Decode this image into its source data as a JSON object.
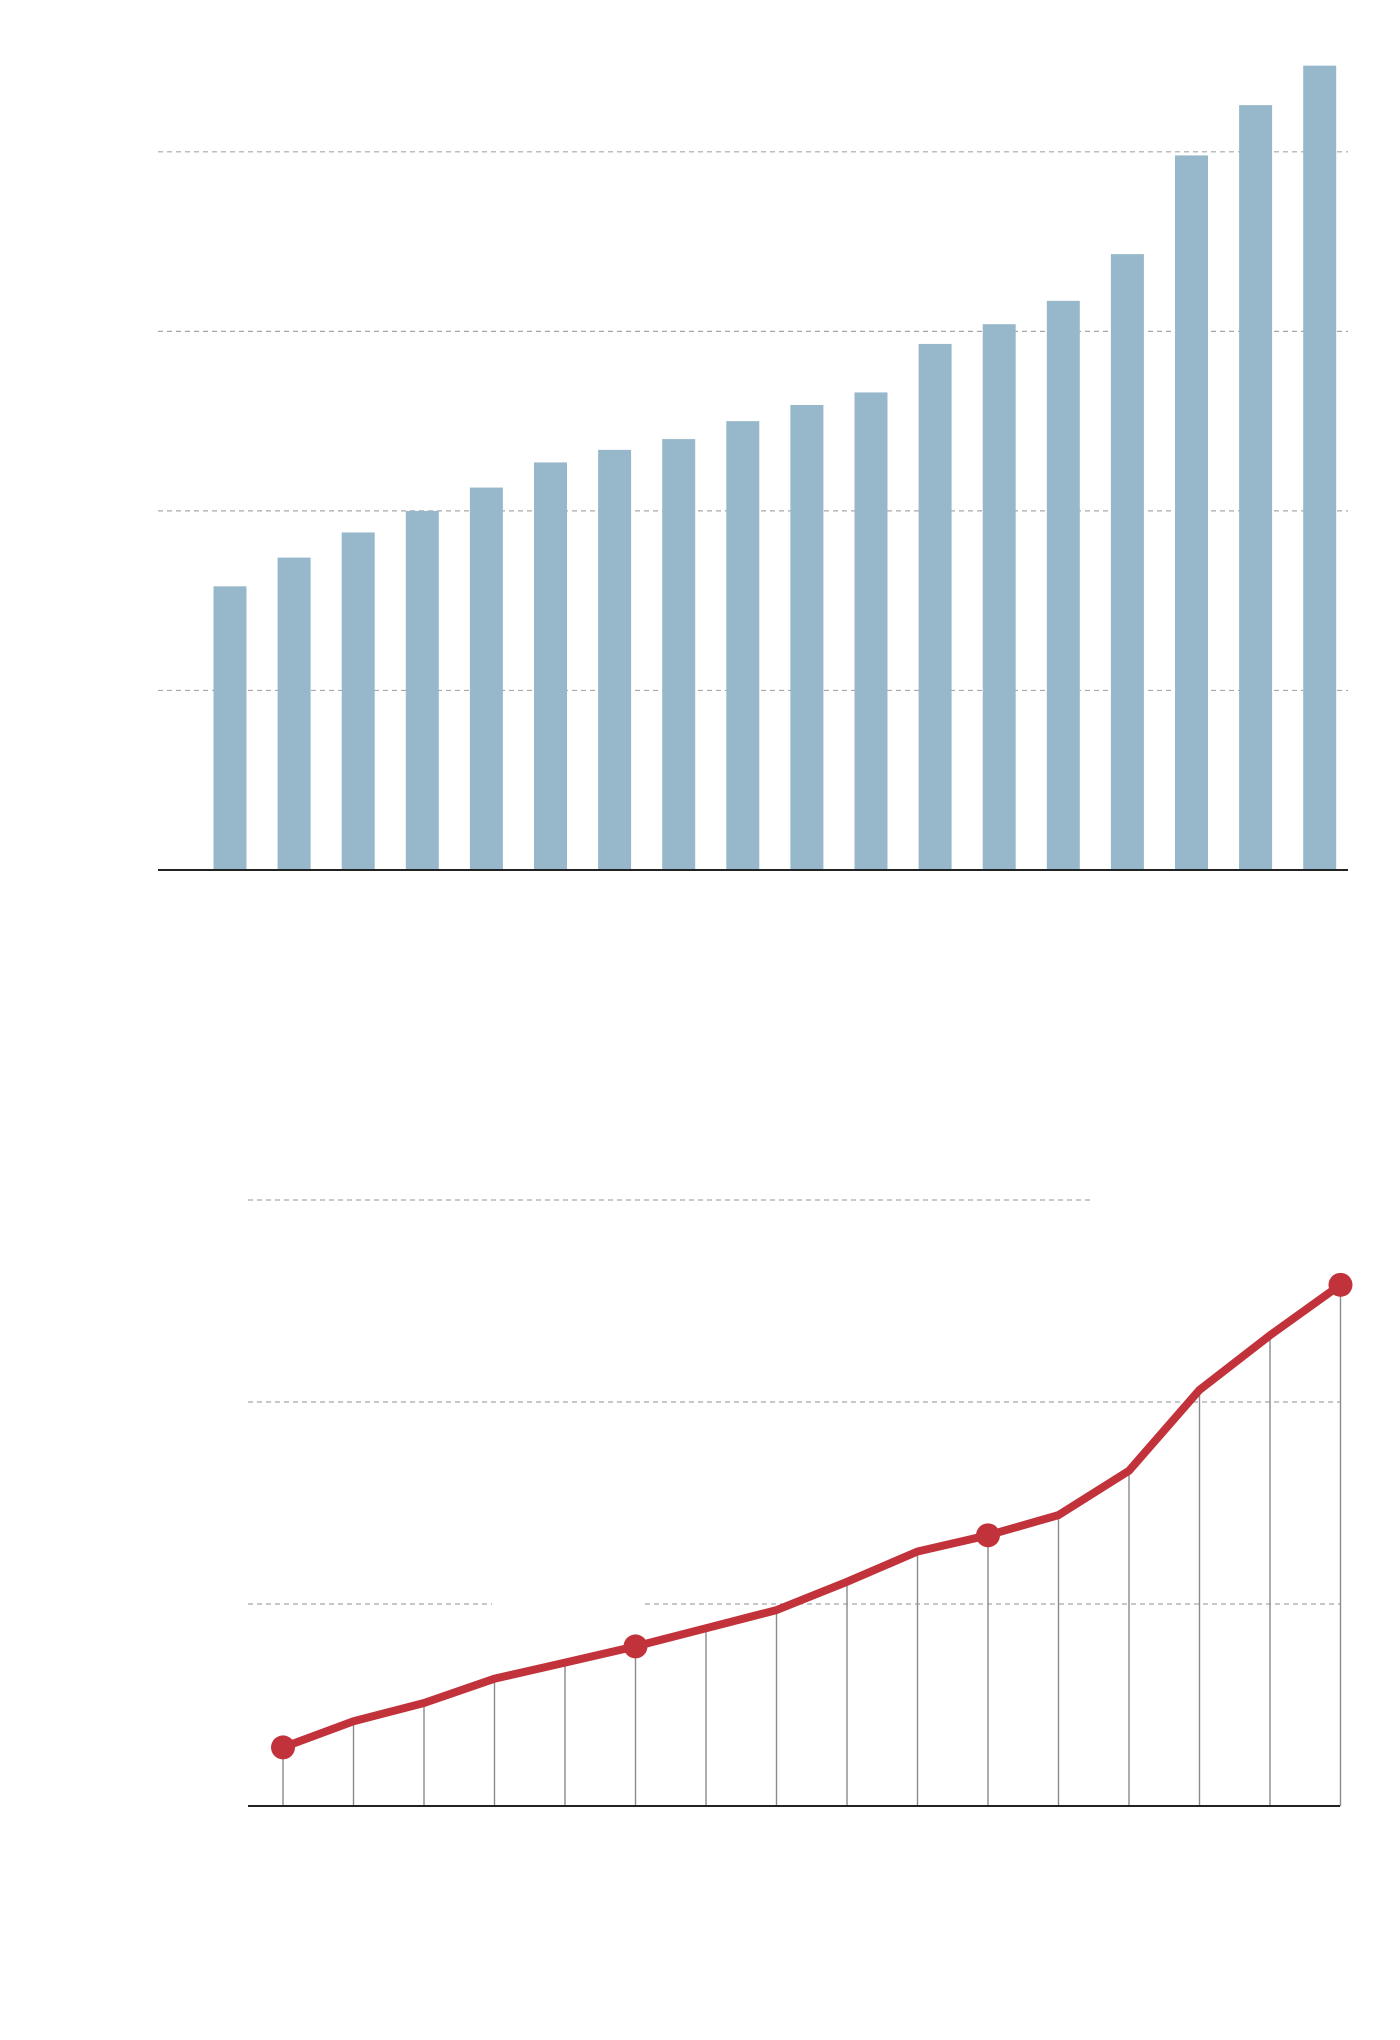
{
  "colors": {
    "bar": "#97b8ca",
    "line": "#c1323a",
    "grid": "#a8a8a8",
    "axis": "#222222",
    "drop": "#8a8a8a"
  },
  "chart_data": [
    {
      "type": "bar",
      "title": "",
      "xlabel": "",
      "ylabel": "",
      "ylim": [
        0,
        4.4
      ],
      "gridlines": [
        1,
        2,
        3,
        4
      ],
      "grid": true,
      "values": [
        1.58,
        1.74,
        1.88,
        2.0,
        2.13,
        2.27,
        2.34,
        2.4,
        2.5,
        2.59,
        2.66,
        2.93,
        3.04,
        3.17,
        3.43,
        3.98,
        4.26,
        4.48
      ]
    },
    {
      "type": "line",
      "title": "",
      "xlabel": "",
      "ylabel": "",
      "ylim": [
        0,
        3
      ],
      "grid": true,
      "gridlines": [
        1,
        2,
        3
      ],
      "values": [
        0.29,
        0.42,
        0.51,
        0.63,
        0.71,
        0.79,
        0.88,
        0.97,
        1.11,
        1.26,
        1.34,
        1.44,
        1.66,
        2.06,
        2.33,
        2.58
      ],
      "highlighted_points": [
        0,
        5,
        10,
        15
      ]
    }
  ]
}
